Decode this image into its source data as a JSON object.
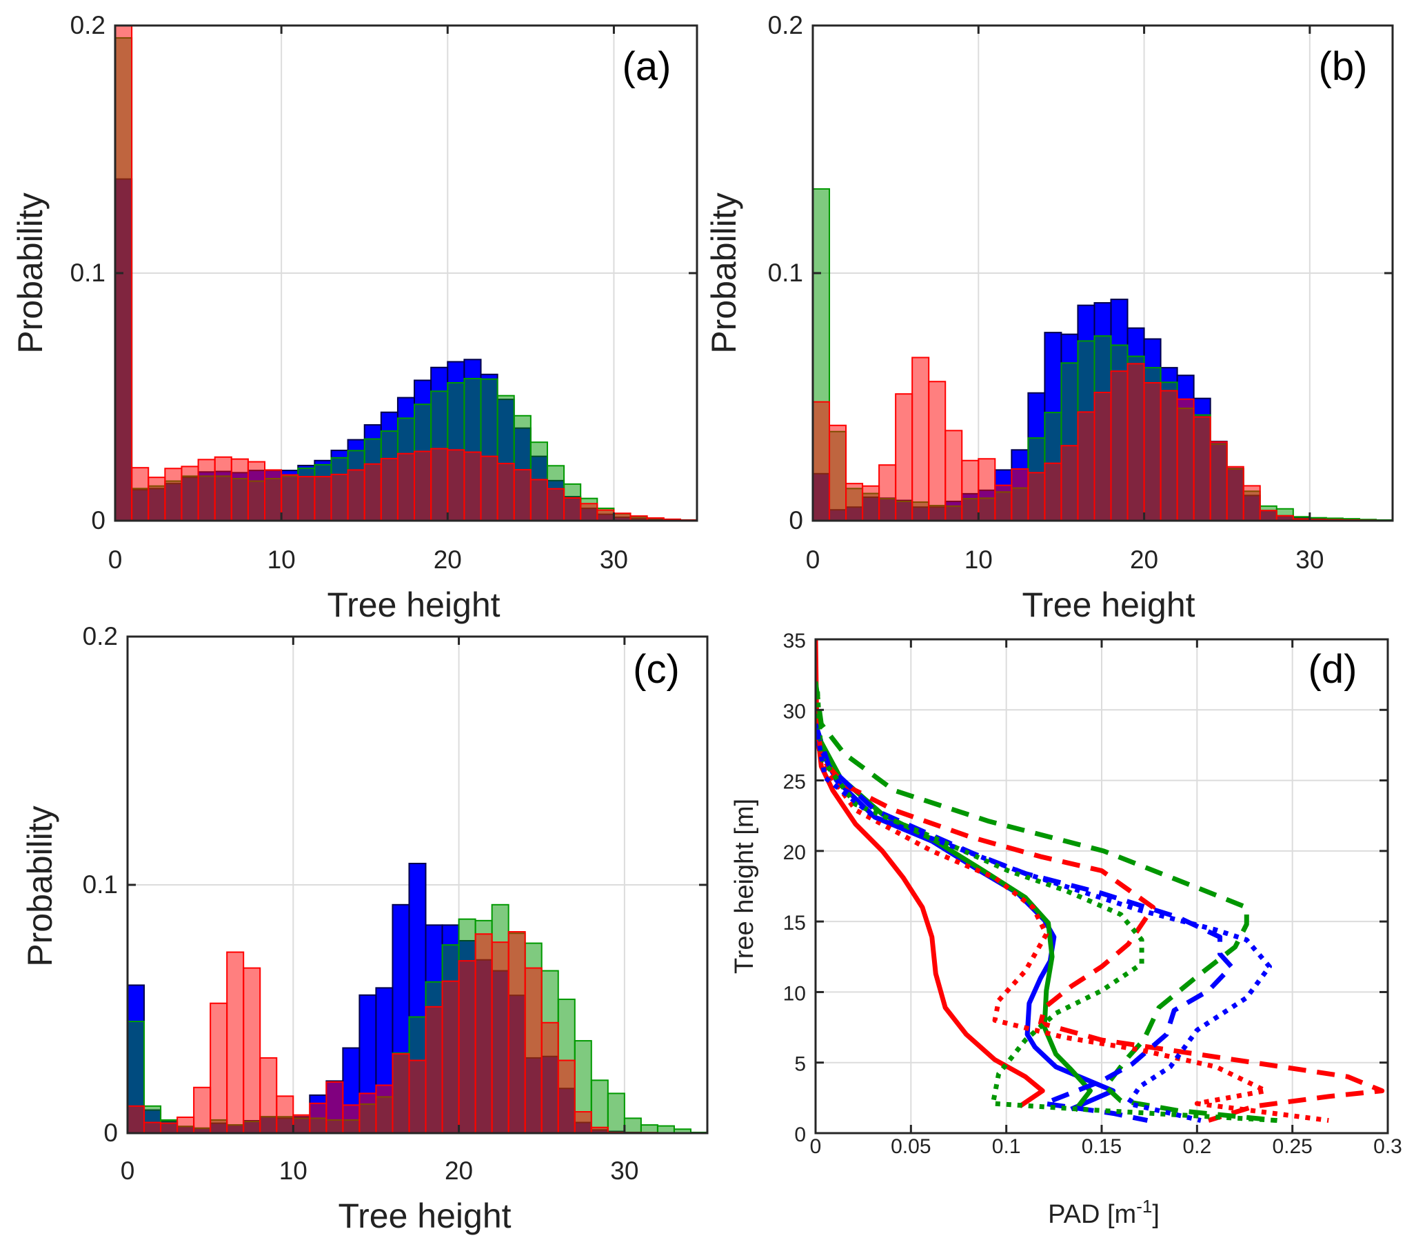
{
  "chart_data": [
    {
      "type": "bar",
      "panel_label": "(a)",
      "xlabel": "Tree height",
      "ylabel": "Probability",
      "xlim": [
        0,
        35
      ],
      "ylim": [
        0,
        0.2
      ],
      "xticks": [
        "0",
        "10",
        "20",
        "30"
      ],
      "xtick_values": [
        0,
        10,
        20,
        30
      ],
      "yticks": [
        "0",
        "0.1",
        "0.2"
      ],
      "ytick_values": [
        0,
        0.1,
        0.2
      ],
      "grid": true,
      "bin_width": 1,
      "bin_start": 0,
      "series": [
        {
          "name": "blue",
          "color": "#0000ff",
          "values": [
            0.138,
            0.0125,
            0.013,
            0.015,
            0.0175,
            0.0197,
            0.0199,
            0.0194,
            0.0203,
            0.0203,
            0.0203,
            0.0223,
            0.0243,
            0.0284,
            0.0327,
            0.0387,
            0.0438,
            0.0497,
            0.0567,
            0.0619,
            0.0642,
            0.0651,
            0.0591,
            0.049,
            0.0374,
            0.026,
            0.0162,
            0.0097,
            0.005,
            0.0026,
            0.0014,
            0.0008,
            0.0005,
            0.0003,
            0.0002
          ]
        },
        {
          "name": "green",
          "color": "#009600",
          "values": [
            0.195,
            0.013,
            0.014,
            0.016,
            0.018,
            0.018,
            0.018,
            0.017,
            0.016,
            0.017,
            0.018,
            0.0212,
            0.0226,
            0.0254,
            0.0283,
            0.033,
            0.0362,
            0.0414,
            0.047,
            0.0523,
            0.0557,
            0.0574,
            0.0572,
            0.0505,
            0.0424,
            0.0317,
            0.0222,
            0.0148,
            0.009,
            0.005,
            0.0028,
            0.0015,
            0.001,
            0.0005,
            0.0003
          ]
        },
        {
          "name": "red",
          "color": "#ff0000",
          "values": [
            0.21,
            0.0214,
            0.0175,
            0.0211,
            0.0219,
            0.0247,
            0.0257,
            0.0249,
            0.0238,
            0.0205,
            0.0185,
            0.0178,
            0.0178,
            0.0187,
            0.0205,
            0.0229,
            0.0251,
            0.0271,
            0.028,
            0.0291,
            0.0286,
            0.0277,
            0.026,
            0.0231,
            0.0206,
            0.0166,
            0.0129,
            0.0092,
            0.0069,
            0.0043,
            0.003,
            0.0019,
            0.0011,
            0.0006,
            0.0003
          ]
        }
      ]
    },
    {
      "type": "bar",
      "panel_label": "(b)",
      "xlabel": "Tree height",
      "ylabel": "Probability",
      "xlim": [
        0,
        35
      ],
      "ylim": [
        0,
        0.2
      ],
      "xticks": [
        "0",
        "10",
        "20",
        "30"
      ],
      "xtick_values": [
        0,
        10,
        20,
        30
      ],
      "yticks": [
        "0",
        "0.1",
        "0.2"
      ],
      "ytick_values": [
        0,
        0.1,
        0.2
      ],
      "grid": true,
      "bin_width": 1,
      "bin_start": 0,
      "series": [
        {
          "name": "blue",
          "color": "#0000ff",
          "values": [
            0.019,
            0.0044,
            0.0055,
            0.0095,
            0.0091,
            0.0082,
            0.0055,
            0.0055,
            0.0078,
            0.0109,
            0.0123,
            0.0205,
            0.0286,
            0.0516,
            0.076,
            0.0753,
            0.087,
            0.088,
            0.0894,
            0.0778,
            0.0734,
            0.0618,
            0.0587,
            0.0494,
            0.032,
            0.0211,
            0.0102,
            0.0041,
            0.002,
            0.0012,
            0.0008,
            0.0005,
            0.0003,
            0.0002,
            0.0001
          ]
        },
        {
          "name": "green",
          "color": "#009600",
          "values": [
            0.134,
            0.036,
            0.013,
            0.011,
            0.0089,
            0.0078,
            0.0075,
            0.0061,
            0.0059,
            0.0089,
            0.0091,
            0.0116,
            0.0132,
            0.0334,
            0.0437,
            0.0637,
            0.0726,
            0.0746,
            0.0709,
            0.0664,
            0.0618,
            0.0559,
            0.0454,
            0.0427,
            0.031,
            0.0209,
            0.0119,
            0.0059,
            0.0048,
            0.0016,
            0.0012,
            0.001,
            0.0008,
            0.0005,
            0.0003
          ]
        },
        {
          "name": "red",
          "color": "#ff0000",
          "values": [
            0.048,
            0.0385,
            0.015,
            0.014,
            0.0225,
            0.0512,
            0.0659,
            0.0562,
            0.0364,
            0.0243,
            0.025,
            0.0143,
            0.0209,
            0.0194,
            0.0232,
            0.0303,
            0.0439,
            0.0518,
            0.0604,
            0.0634,
            0.0557,
            0.0525,
            0.0491,
            0.0419,
            0.0318,
            0.0218,
            0.0141,
            0.0041,
            0.002,
            0.0007,
            0.0005,
            0.0004,
            0.0003,
            0.0002,
            0.0001
          ]
        }
      ]
    },
    {
      "type": "bar",
      "panel_label": "(c)",
      "xlabel": "Tree height",
      "ylabel": "Probability",
      "xlim": [
        0,
        35
      ],
      "ylim": [
        0,
        0.2
      ],
      "xticks": [
        "0",
        "10",
        "20",
        "30"
      ],
      "xtick_values": [
        0,
        10,
        20,
        30
      ],
      "yticks": [
        "0",
        "0.1",
        "0.2"
      ],
      "ytick_values": [
        0,
        0.1,
        0.2
      ],
      "grid": true,
      "bin_width": 1,
      "bin_start": 0,
      "series": [
        {
          "name": "blue",
          "color": "#0000ff",
          "values": [
            0.0596,
            0.0093,
            0.0047,
            0.0027,
            0.002,
            0.004,
            0.0033,
            0.005,
            0.0066,
            0.006,
            0.0066,
            0.0153,
            0.021,
            0.0343,
            0.0556,
            0.0585,
            0.092,
            0.1086,
            0.0838,
            0.0838,
            0.0775,
            0.0698,
            0.0654,
            0.0555,
            0.0303,
            0.0309,
            0.018,
            0.0043,
            0.0013,
            0.0007,
            0.0003,
            0.0002,
            0.0001,
            0.0001,
            0.0001
          ]
        },
        {
          "name": "green",
          "color": "#009600",
          "values": [
            0.045,
            0.0109,
            0.0053,
            0.0027,
            0.002,
            0.0053,
            0.0033,
            0.0047,
            0.0066,
            0.0066,
            0.006,
            0.006,
            0.0053,
            0.0053,
            0.0117,
            0.0146,
            0.0322,
            0.0468,
            0.0609,
            0.0758,
            0.0862,
            0.0856,
            0.092,
            0.0805,
            0.0765,
            0.0654,
            0.0539,
            0.0372,
            0.0213,
            0.016,
            0.006,
            0.0033,
            0.0029,
            0.0016,
            0.0003
          ]
        },
        {
          "name": "red",
          "color": "#ff0000",
          "values": [
            0.0109,
            0.0043,
            0.004,
            0.0064,
            0.0184,
            0.0523,
            0.0729,
            0.0665,
            0.0303,
            0.0149,
            0.0073,
            0.012,
            0.0206,
            0.0113,
            0.016,
            0.0193,
            0.0319,
            0.0293,
            0.0509,
            0.0612,
            0.0694,
            0.0802,
            0.0769,
            0.0811,
            0.0665,
            0.0445,
            0.0293,
            0.0086,
            0.0023,
            0.0003,
            0.0002,
            0.0002,
            0.0001,
            0.0001,
            0.0001
          ]
        }
      ]
    },
    {
      "type": "line",
      "panel_label": "(d)",
      "xlabel": "PAD [m",
      "xlabel_sup": "-1",
      "xlabel_end": "]",
      "ylabel": "Tree height [m]",
      "xlim": [
        0,
        0.3
      ],
      "ylim": [
        0,
        35
      ],
      "xticks": [
        "0",
        "0.05",
        "0.1",
        "0.15",
        "0.2",
        "0.25",
        "0.3"
      ],
      "xtick_values": [
        0,
        0.05,
        0.1,
        0.15,
        0.2,
        0.25,
        0.3
      ],
      "yticks": [
        "0",
        "5",
        "10",
        "15",
        "20",
        "25",
        "30",
        "35"
      ],
      "ytick_values": [
        0,
        5,
        10,
        15,
        20,
        25,
        30,
        35
      ],
      "grid": true,
      "series": [
        {
          "name": "red-solid",
          "color": "#ff0000",
          "style": "solid",
          "x": [
            0,
            0.0006,
            0.003,
            0.009,
            0.021,
            0.035,
            0.046,
            0.056,
            0.061,
            0.063,
            0.068,
            0.079,
            0.094,
            0.11,
            0.119,
            0.107
          ],
          "y": [
            35,
            29,
            26,
            24.3,
            21.9,
            20,
            18.1,
            16,
            13.9,
            11.3,
            8.9,
            7,
            5.2,
            4,
            3,
            1.9
          ]
        },
        {
          "name": "blue-solid",
          "color": "#0000ff",
          "style": "solid",
          "x": [
            0.0006,
            0.011,
            0.031,
            0.061,
            0.086,
            0.106,
            0.12,
            0.125,
            0.123,
            0.118,
            0.112,
            0.111,
            0.115,
            0.126,
            0.156,
            0.134
          ],
          "y": [
            27.8,
            25,
            22.4,
            20.7,
            18.6,
            17,
            15.1,
            13.9,
            12.2,
            11,
            9.2,
            7,
            6.1,
            4.7,
            3,
            1.7
          ]
        },
        {
          "name": "green-solid",
          "color": "#009600",
          "style": "solid",
          "x": [
            0.0006,
            0.013,
            0.035,
            0.063,
            0.088,
            0.11,
            0.122,
            0.124,
            0.121,
            0.12,
            0.126,
            0.134,
            0.144,
            0.136
          ],
          "y": [
            28.3,
            25.2,
            22.6,
            20.7,
            18.6,
            16.7,
            14.9,
            12.5,
            10.1,
            7.5,
            5.6,
            4.5,
            3,
            1.6
          ]
        },
        {
          "name": "red-dashed",
          "color": "#ff0000",
          "style": "dashed",
          "x": [
            0,
            0.003,
            0.015,
            0.041,
            0.081,
            0.118,
            0.15,
            0.177,
            0.164,
            0.15,
            0.134,
            0.12,
            0.118,
            0.15,
            0.21,
            0.279,
            0.297,
            0.269,
            0.23,
            0.206
          ],
          "y": [
            30.2,
            26.6,
            24.7,
            22.9,
            21,
            19.6,
            18.6,
            16,
            13.4,
            11.8,
            10.4,
            8.9,
            7.8,
            6.6,
            5.4,
            4,
            3,
            2.6,
            1.9,
            0.9
          ]
        },
        {
          "name": "green-dashed",
          "color": "#009600",
          "style": "dashed",
          "x": [
            0,
            0.003,
            0.015,
            0.041,
            0.091,
            0.151,
            0.2,
            0.226,
            0.226,
            0.22,
            0.2,
            0.18,
            0.172,
            0.164,
            0.152,
            0.16,
            0.19,
            0.242
          ],
          "y": [
            32,
            29,
            26.9,
            24.3,
            22.1,
            20,
            17.4,
            16,
            14.8,
            13.2,
            11.1,
            8.9,
            6.6,
            5.4,
            3.3,
            2.3,
            1.6,
            0.9
          ]
        },
        {
          "name": "blue-dashed",
          "color": "#0000ff",
          "style": "dashed",
          "x": [
            0,
            0.007,
            0.031,
            0.083,
            0.11,
            0.15,
            0.19,
            0.212,
            0.212,
            0.218,
            0.206,
            0.188,
            0.184,
            0.166,
            0.15,
            0.12,
            0.156,
            0.174
          ],
          "y": [
            29,
            26,
            22.9,
            19.8,
            18.4,
            17,
            15.3,
            13.9,
            12.7,
            11.8,
            10.1,
            8.7,
            7,
            4.9,
            3.7,
            2.1,
            1.4,
            0.9
          ]
        },
        {
          "name": "red-dotted",
          "color": "#ff0000",
          "style": "dotted",
          "x": [
            0,
            0.003,
            0.021,
            0.061,
            0.094,
            0.114,
            0.121,
            0.11,
            0.096,
            0.094,
            0.13,
            0.17,
            0.21,
            0.236,
            0.2,
            0.269
          ],
          "y": [
            29,
            26.2,
            22.9,
            20,
            18.1,
            16,
            14.1,
            11.5,
            9.4,
            8,
            6.8,
            5.9,
            4.7,
            3,
            2.1,
            0.9
          ]
        },
        {
          "name": "green-dotted",
          "color": "#009600",
          "style": "dotted",
          "x": [
            0.001,
            0.003,
            0.021,
            0.061,
            0.101,
            0.131,
            0.16,
            0.171,
            0.171,
            0.15,
            0.126,
            0.11,
            0.096,
            0.093,
            0.15,
            0.242
          ],
          "y": [
            31.3,
            26.6,
            23.3,
            21,
            18.6,
            17.2,
            15.5,
            13.7,
            12,
            10.1,
            8.5,
            6.6,
            4.2,
            2.1,
            1.6,
            0.9
          ]
        },
        {
          "name": "blue-dotted",
          "color": "#0000ff",
          "style": "dotted",
          "x": [
            0,
            0.005,
            0.031,
            0.11,
            0.17,
            0.21,
            0.226,
            0.238,
            0.226,
            0.2,
            0.186,
            0.17,
            0.164,
            0.202
          ],
          "y": [
            29,
            25.2,
            22.4,
            18.4,
            15.8,
            14.4,
            13.7,
            11.8,
            9.6,
            7.3,
            4.7,
            3.3,
            2.1,
            0.9
          ]
        }
      ]
    }
  ]
}
